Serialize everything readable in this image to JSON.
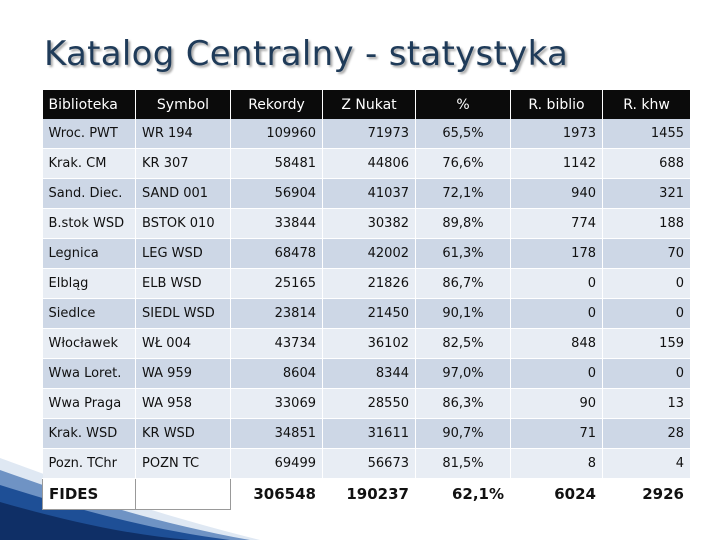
{
  "title": "Katalog Centralny - statystyka",
  "headers": [
    "Biblioteka",
    "Symbol",
    "Rekordy",
    "Z Nukat",
    "%",
    "R. biblio",
    "R. khw"
  ],
  "rows": [
    [
      "Wroc. PWT",
      "WR 194",
      "109960",
      "71973",
      "65,5%",
      "1973",
      "1455"
    ],
    [
      "Krak. CM",
      "KR 307",
      "58481",
      "44806",
      "76,6%",
      "1142",
      "688"
    ],
    [
      "Sand. Diec.",
      "SAND 001",
      "56904",
      "41037",
      "72,1%",
      "940",
      "321"
    ],
    [
      "B.stok WSD",
      "BSTOK 010",
      "33844",
      "30382",
      "89,8%",
      "774",
      "188"
    ],
    [
      "Legnica",
      "LEG WSD",
      "68478",
      "42002",
      "61,3%",
      "178",
      "70"
    ],
    [
      "Elbląg",
      "ELB WSD",
      "25165",
      "21826",
      "86,7%",
      "0",
      "0"
    ],
    [
      "Siedlce",
      "SIEDL WSD",
      "23814",
      "21450",
      "90,1%",
      "0",
      "0"
    ],
    [
      "Włocławek",
      "WŁ 004",
      "43734",
      "36102",
      "82,5%",
      "848",
      "159"
    ],
    [
      "Wwa Loret.",
      "WA 959",
      "8604",
      "8344",
      "97,0%",
      "0",
      "0"
    ],
    [
      "Wwa Praga",
      "WA 958",
      "33069",
      "28550",
      "86,3%",
      "90",
      "13"
    ],
    [
      "Krak. WSD",
      "KR WSD",
      "34851",
      "31611",
      "90,7%",
      "71",
      "28"
    ],
    [
      "Pozn. TChr",
      "POZN TC",
      "69499",
      "56673",
      "81,5%",
      "8",
      "4"
    ]
  ],
  "totals": [
    "FIDES",
    "",
    "306548",
    "190237",
    "62,1%",
    "6024",
    "2926"
  ]
}
